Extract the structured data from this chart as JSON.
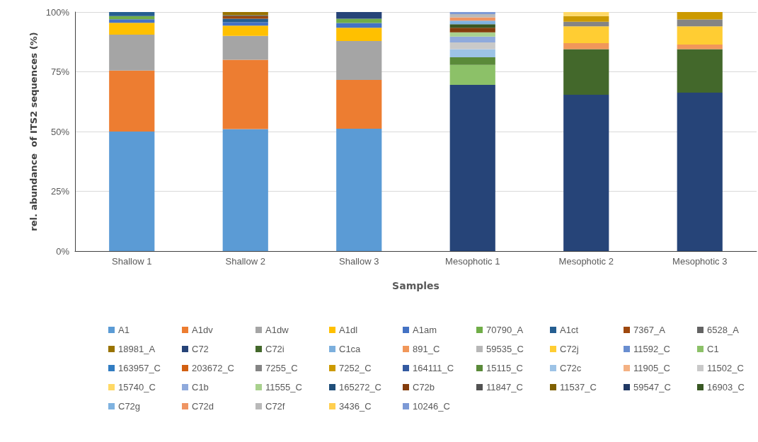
{
  "chart_data": {
    "type": "bar",
    "stacked": true,
    "xlabel": "Samples",
    "ylabel": "rel. abundance  of ITS2 sequences (%)",
    "categories": [
      "Shallow 1",
      "Shallow 2",
      "Shallow 3",
      "Mesophotic 1",
      "Mesophotic 2",
      "Mesophotic 3"
    ],
    "ylim": [
      0,
      100
    ],
    "yticks": [
      {
        "value": 0,
        "label": "0%"
      },
      {
        "value": 25,
        "label": "25%"
      },
      {
        "value": 50,
        "label": "50%"
      },
      {
        "value": 75,
        "label": "75%"
      },
      {
        "value": 100,
        "label": "100%"
      }
    ],
    "grid": "y",
    "legend": "bottom",
    "series": [
      {
        "name": "A1",
        "color": "#5b9bd5",
        "values": [
          50,
          51,
          51.2,
          null,
          null,
          null
        ]
      },
      {
        "name": "A1dv",
        "color": "#ed7d31",
        "values": [
          25.5,
          29,
          20.4,
          null,
          null,
          null
        ]
      },
      {
        "name": "A1dw",
        "color": "#a5a5a5",
        "values": [
          15,
          10,
          16.3,
          null,
          null,
          null
        ]
      },
      {
        "name": "A1dl",
        "color": "#ffc000",
        "values": [
          5,
          4.3,
          5.5,
          null,
          null,
          null
        ]
      },
      {
        "name": "A1am",
        "color": "#4472c4",
        "values": [
          1.5,
          1.4,
          2,
          null,
          null,
          null
        ]
      },
      {
        "name": "70790_A",
        "color": "#70ad47",
        "values": [
          1.3,
          null,
          1.8,
          null,
          null,
          null
        ]
      },
      {
        "name": "A1ct",
        "color": "#255e91",
        "values": [
          1.7,
          1.5,
          null,
          null,
          null,
          null
        ]
      },
      {
        "name": "7367_A",
        "color": "#9e480e",
        "values": [
          null,
          1,
          null,
          null,
          null,
          null
        ]
      },
      {
        "name": "6528_A",
        "color": "#636363",
        "values": [
          null,
          0.5,
          null,
          null,
          null,
          null
        ]
      },
      {
        "name": "18981_A",
        "color": "#997300",
        "values": [
          null,
          1.3,
          null,
          null,
          null,
          null
        ]
      },
      {
        "name": "C72",
        "color": "#264478",
        "values": [
          null,
          null,
          2.8,
          69.5,
          65.4,
          66.3
        ]
      },
      {
        "name": "C72i",
        "color": "#43682b",
        "values": [
          null,
          null,
          null,
          null,
          19.1,
          18.2
        ]
      },
      {
        "name": "C1ca",
        "color": "#7cafdd",
        "values": [
          null,
          null,
          null,
          null,
          null,
          null
        ]
      },
      {
        "name": "891_C",
        "color": "#f1975a",
        "values": [
          null,
          null,
          null,
          null,
          2.5,
          1.9
        ]
      },
      {
        "name": "59535_C",
        "color": "#b7b7b7",
        "values": [
          null,
          null,
          null,
          null,
          null,
          null
        ]
      },
      {
        "name": "C72j",
        "color": "#ffcd33",
        "values": [
          null,
          null,
          null,
          null,
          7,
          7.6
        ]
      },
      {
        "name": "11592_C",
        "color": "#698ed0",
        "values": [
          null,
          null,
          null,
          null,
          null,
          null
        ]
      },
      {
        "name": "C1",
        "color": "#8cc168",
        "values": [
          null,
          null,
          null,
          8.4,
          null,
          null
        ]
      },
      {
        "name": "163957_C",
        "color": "#327dc2",
        "values": [
          null,
          null,
          null,
          null,
          null,
          null
        ]
      },
      {
        "name": "203672_C",
        "color": "#d26012",
        "values": [
          null,
          null,
          null,
          null,
          null,
          null
        ]
      },
      {
        "name": "7255_C",
        "color": "#848484",
        "values": [
          null,
          null,
          null,
          null,
          1.9,
          2.9
        ]
      },
      {
        "name": "7252_C",
        "color": "#cc9a00",
        "values": [
          null,
          null,
          null,
          null,
          2.4,
          3.1
        ]
      },
      {
        "name": "164111_C",
        "color": "#335aa1",
        "values": [
          null,
          null,
          null,
          null,
          null,
          null
        ]
      },
      {
        "name": "15115_C",
        "color": "#5a8a39",
        "values": [
          null,
          null,
          null,
          3.2,
          null,
          null
        ]
      },
      {
        "name": "C72c",
        "color": "#9dc3e6",
        "values": [
          null,
          null,
          null,
          3.4,
          null,
          null
        ]
      },
      {
        "name": "11905_C",
        "color": "#f4b183",
        "values": [
          null,
          null,
          null,
          null,
          null,
          null
        ]
      },
      {
        "name": "11502_C",
        "color": "#c9c9c9",
        "values": [
          null,
          null,
          null,
          2.8,
          null,
          null
        ]
      },
      {
        "name": "15740_C",
        "color": "#ffd966",
        "values": [
          null,
          null,
          null,
          null,
          1.7,
          null
        ]
      },
      {
        "name": "C1b",
        "color": "#8faadc",
        "values": [
          null,
          null,
          null,
          2.4,
          null,
          null
        ]
      },
      {
        "name": "11555_C",
        "color": "#a9d18e",
        "values": [
          null,
          null,
          null,
          1.8,
          null,
          null
        ]
      },
      {
        "name": "165272_C",
        "color": "#1f4e79",
        "values": [
          null,
          null,
          null,
          null,
          null,
          null
        ]
      },
      {
        "name": "C72b",
        "color": "#843c0c",
        "values": [
          null,
          null,
          null,
          1.9,
          null,
          null
        ]
      },
      {
        "name": "11847_C",
        "color": "#525252",
        "values": [
          null,
          null,
          null,
          null,
          null,
          null
        ]
      },
      {
        "name": "11537_C",
        "color": "#7f6000",
        "values": [
          null,
          null,
          null,
          null,
          null,
          null
        ]
      },
      {
        "name": "59547_C",
        "color": "#203864",
        "values": [
          null,
          null,
          null,
          null,
          null,
          null
        ]
      },
      {
        "name": "16903_C",
        "color": "#385723",
        "values": [
          null,
          null,
          null,
          1.5,
          null,
          null
        ]
      },
      {
        "name": "C72g",
        "color": "#7fb2e0",
        "values": [
          null,
          null,
          null,
          1.5,
          null,
          null
        ]
      },
      {
        "name": "C72d",
        "color": "#ef9563",
        "values": [
          null,
          null,
          null,
          1.4,
          null,
          null
        ]
      },
      {
        "name": "C72f",
        "color": "#b9b9b9",
        "values": [
          null,
          null,
          null,
          1.3,
          null,
          null
        ]
      },
      {
        "name": "3436_C",
        "color": "#ffcf4f",
        "values": [
          null,
          null,
          null,
          null,
          null,
          null
        ]
      },
      {
        "name": "10246_C",
        "color": "#7d9ad6",
        "values": [
          null,
          null,
          null,
          0.9,
          null,
          null
        ]
      }
    ]
  }
}
